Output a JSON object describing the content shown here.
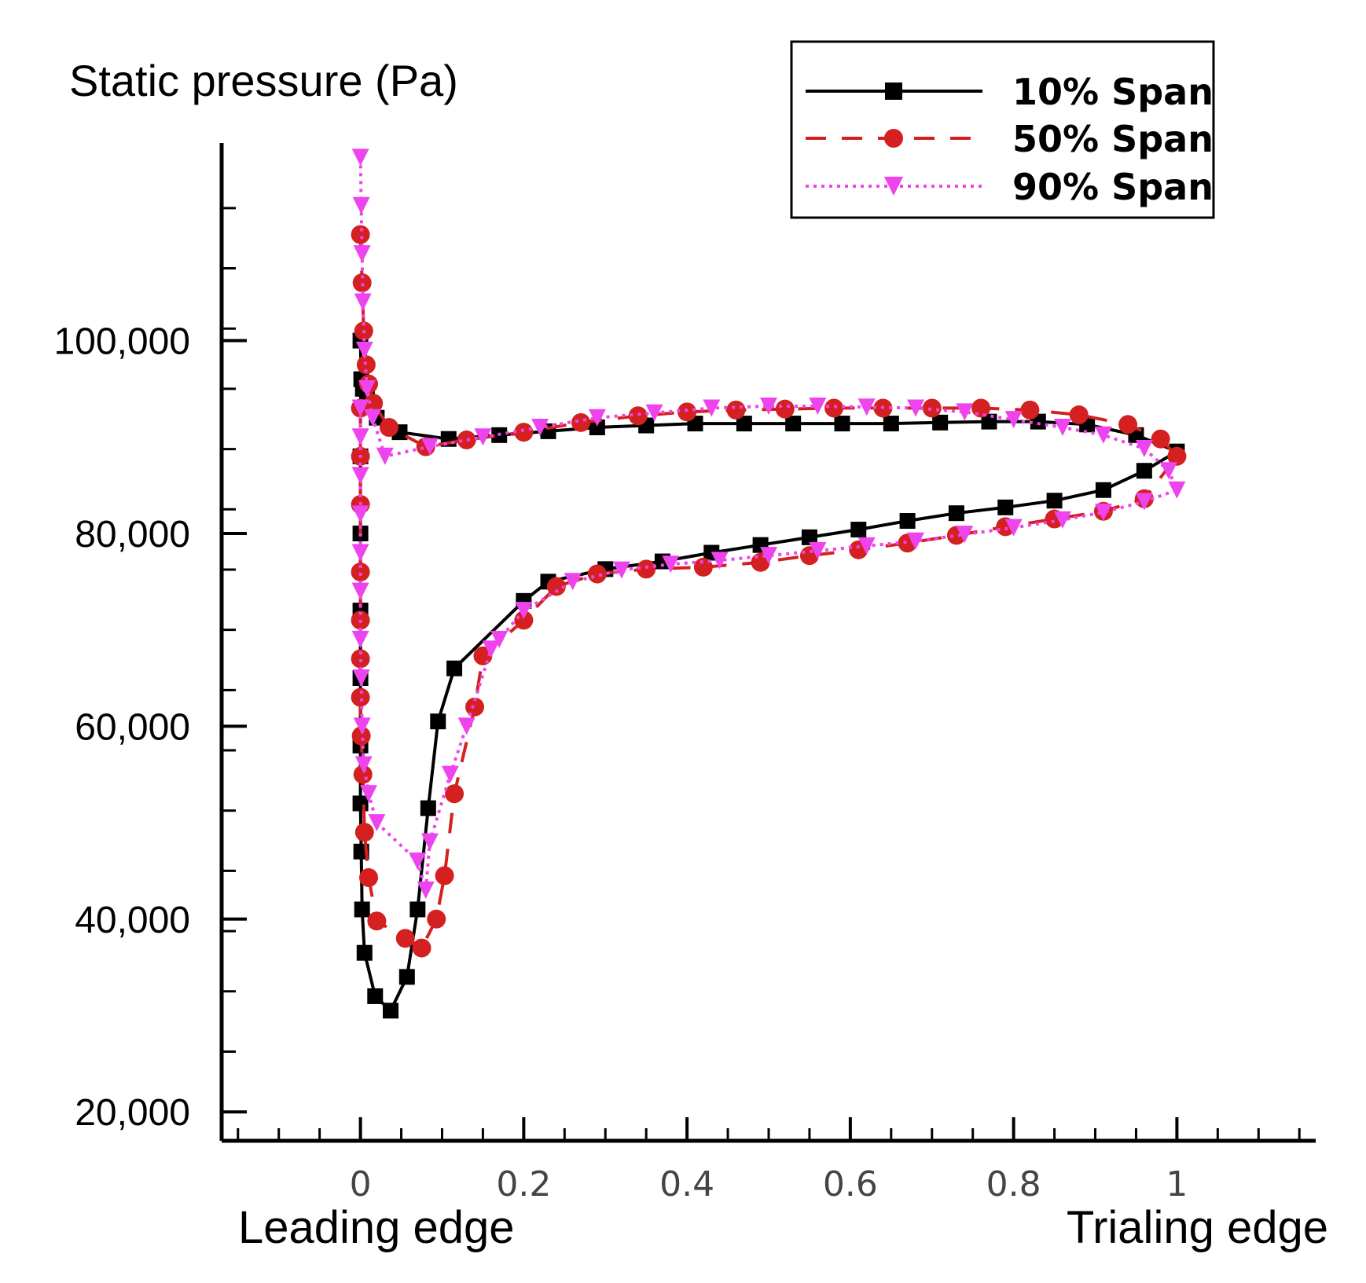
{
  "chart_data": {
    "type": "line",
    "ylabel": "Static pressure (Pa)",
    "xlabel_left": "Leading edge",
    "xlabel_right": "Trialing edge",
    "xlim": [
      -0.17,
      1.17
    ],
    "ylim": [
      17000,
      120500
    ],
    "x_ticks": [
      {
        "value": 0,
        "label": "0"
      },
      {
        "value": 0.2,
        "label": "0.2"
      },
      {
        "value": 0.4,
        "label": "0.4"
      },
      {
        "value": 0.6,
        "label": "0.6"
      },
      {
        "value": 0.8,
        "label": "0.8"
      },
      {
        "value": 1,
        "label": "1"
      }
    ],
    "y_ticks": [
      {
        "value": 20000,
        "label": "20,000"
      },
      {
        "value": 40000,
        "label": "40,000"
      },
      {
        "value": 60000,
        "label": "60,000"
      },
      {
        "value": 80000,
        "label": "80,000"
      },
      {
        "value": 100000,
        "label": "100,000"
      }
    ],
    "legend_position": "top-right",
    "series": [
      {
        "name": "10% Span",
        "color": "#000000",
        "dash": "solid",
        "marker": "square",
        "x": [
          0.0,
          0.001,
          0.003,
          0.008,
          0.02,
          0.048,
          0.108,
          0.17,
          0.23,
          0.29,
          0.35,
          0.41,
          0.47,
          0.53,
          0.59,
          0.65,
          0.71,
          0.77,
          0.83,
          0.89,
          0.95,
          1.0,
          0.96,
          0.91,
          0.85,
          0.79,
          0.73,
          0.67,
          0.61,
          0.55,
          0.49,
          0.43,
          0.37,
          0.3,
          0.23,
          0.2,
          0.115,
          0.095,
          0.083,
          0.07,
          0.057,
          0.037,
          0.018,
          0.005,
          0.002,
          0.001,
          0.0,
          0.0,
          0.0,
          0.0,
          0.0,
          0.0
        ],
        "y": [
          100000,
          96000,
          95000,
          94000,
          92000,
          90500,
          89800,
          90200,
          90600,
          91000,
          91200,
          91400,
          91400,
          91400,
          91400,
          91400,
          91500,
          91600,
          91600,
          91300,
          90200,
          88500,
          86500,
          84500,
          83400,
          82700,
          82100,
          81300,
          80400,
          79600,
          78800,
          78000,
          77100,
          76300,
          75000,
          73000,
          66000,
          60500,
          51500,
          41000,
          34000,
          30500,
          32000,
          36500,
          41000,
          47000,
          52000,
          58000,
          65000,
          72000,
          80000,
          88000
        ]
      },
      {
        "name": "50% Span",
        "color": "#d42020",
        "dash": "dash",
        "marker": "circle",
        "x": [
          0.0,
          0.002,
          0.004,
          0.007,
          0.01,
          0.016,
          0.035,
          0.08,
          0.13,
          0.2,
          0.27,
          0.34,
          0.4,
          0.46,
          0.52,
          0.58,
          0.64,
          0.7,
          0.76,
          0.82,
          0.88,
          0.94,
          0.98,
          1.0,
          0.96,
          0.91,
          0.85,
          0.79,
          0.73,
          0.67,
          0.61,
          0.55,
          0.49,
          0.42,
          0.35,
          0.29,
          0.24,
          0.2,
          0.15,
          0.14,
          0.115,
          0.103,
          0.093,
          0.075,
          0.055,
          0.02,
          0.01,
          0.005,
          0.003,
          0.001,
          0.0,
          0.0,
          0.0,
          0.0,
          0.0,
          0.0,
          0.0
        ],
        "y": [
          111000,
          106000,
          101000,
          97500,
          95500,
          93500,
          91000,
          89000,
          89700,
          90500,
          91500,
          92200,
          92600,
          92800,
          92900,
          93000,
          93000,
          93000,
          93000,
          92800,
          92300,
          91300,
          89800,
          88000,
          83600,
          82300,
          81500,
          80700,
          79800,
          79000,
          78300,
          77700,
          77000,
          76500,
          76300,
          75800,
          74500,
          71000,
          67300,
          62000,
          53000,
          44500,
          40000,
          37000,
          38000,
          39800,
          44300,
          49000,
          55000,
          59000,
          63000,
          67000,
          71000,
          76000,
          83000,
          88000,
          93000
        ]
      },
      {
        "name": "90% Span",
        "color": "#ee44ee",
        "dash": "dot",
        "marker": "triangle-down",
        "x": [
          0.0,
          0.001,
          0.002,
          0.003,
          0.005,
          0.008,
          0.015,
          0.03,
          0.085,
          0.15,
          0.22,
          0.29,
          0.36,
          0.43,
          0.5,
          0.56,
          0.62,
          0.68,
          0.74,
          0.8,
          0.86,
          0.91,
          0.96,
          0.99,
          1.0,
          0.96,
          0.91,
          0.86,
          0.8,
          0.74,
          0.68,
          0.62,
          0.56,
          0.5,
          0.44,
          0.38,
          0.32,
          0.26,
          0.2,
          0.17,
          0.16,
          0.13,
          0.11,
          0.085,
          0.08,
          0.07,
          0.02,
          0.01,
          0.004,
          0.002,
          0.001,
          0.0,
          0.0,
          0.0,
          0.0,
          0.0,
          0.0,
          0.0
        ],
        "y": [
          119000,
          114000,
          109000,
          104000,
          99000,
          95000,
          92000,
          88000,
          89000,
          90000,
          91000,
          92000,
          92500,
          93000,
          93200,
          93200,
          93100,
          93000,
          92600,
          91800,
          91000,
          90200,
          88800,
          86500,
          84500,
          83300,
          82200,
          81400,
          80600,
          79900,
          79200,
          78700,
          78200,
          77700,
          77200,
          76800,
          76200,
          75000,
          72000,
          69000,
          68000,
          60000,
          55000,
          48000,
          43000,
          46000,
          50000,
          53000,
          56000,
          60000,
          65000,
          69000,
          74000,
          78000,
          82000,
          86000,
          90000,
          93000
        ]
      }
    ]
  }
}
